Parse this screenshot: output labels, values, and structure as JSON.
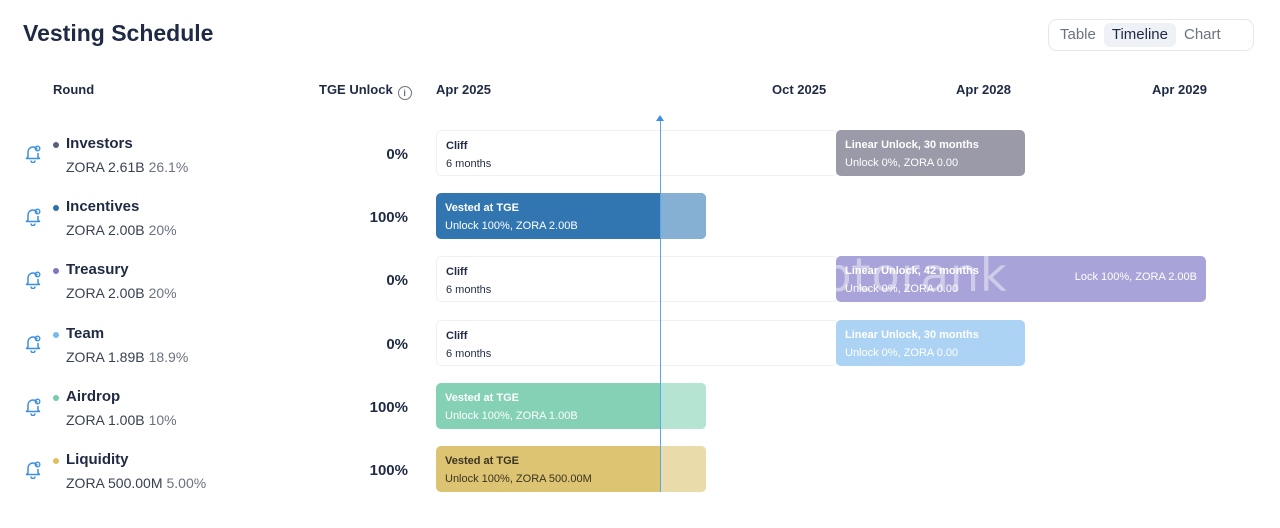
{
  "title": "Vesting Schedule",
  "view_tabs": [
    {
      "label": "Table",
      "active": false
    },
    {
      "label": "Timeline",
      "active": true
    },
    {
      "label": "Chart",
      "active": false
    }
  ],
  "headers": {
    "round": "Round",
    "tge_unlock": "TGE Unlock",
    "timeline": [
      "Apr 2025",
      "Oct 2025",
      "Apr 2028",
      "Apr 2029"
    ]
  },
  "icons": {
    "alert": "bell-icon",
    "info": "info-icon",
    "now_marker": "current-date-marker"
  },
  "watermark": "cryptorank",
  "rounds": [
    {
      "name": "Investors",
      "amount": "ZORA 2.61B",
      "share": "26.1%",
      "tge": "0%",
      "color": "#5a5f78",
      "cliff": {
        "l1": "Cliff",
        "l2": "6 months"
      },
      "vest": {
        "l1": "Linear Unlock, 30 months",
        "l2": "Unlock 0%, ZORA 0.00",
        "color": "#9a9aa8"
      }
    },
    {
      "name": "Incentives",
      "amount": "ZORA 2.00B",
      "share": "20%",
      "tge": "100%",
      "color": "#2f6fa8",
      "tge_bar": {
        "l1": "Vested at TGE",
        "l2": "Unlock 100%, ZORA 2.00B",
        "color": "#3276b1",
        "fade": "#86afd4"
      }
    },
    {
      "name": "Treasury",
      "amount": "ZORA 2.00B",
      "share": "20%",
      "tge": "0%",
      "color": "#7f77c4",
      "cliff": {
        "l1": "Cliff",
        "l2": "6 months"
      },
      "vest": {
        "l1": "Linear Unlock, 42 months",
        "l2": "Unlock 0%, ZORA 0.00",
        "r": "Lock 100%, ZORA 2.00B",
        "color": "#a8a3d8"
      }
    },
    {
      "name": "Team",
      "amount": "ZORA 1.89B",
      "share": "18.9%",
      "tge": "0%",
      "color": "#7ab8ec",
      "cliff": {
        "l1": "Cliff",
        "l2": "6 months"
      },
      "vest": {
        "l1": "Linear Unlock, 30 months",
        "l2": "Unlock 0%, ZORA 0.00",
        "color": "#acd3f3"
      }
    },
    {
      "name": "Airdrop",
      "amount": "ZORA 1.00B",
      "share": "10%",
      "tge": "100%",
      "color": "#73ccb0",
      "tge_bar": {
        "l1": "Vested at TGE",
        "l2": "Unlock 100%, ZORA 1.00B",
        "color": "#85d1b6",
        "fade": "#b6e4d3"
      }
    },
    {
      "name": "Liquidity",
      "amount": "ZORA 500.00M",
      "share": "5.00%",
      "tge": "100%",
      "color": "#e3bf5a",
      "tge_bar": {
        "l1": "Vested at TGE",
        "l2": "Unlock 100%, ZORA 500.00M",
        "color": "#dcc472",
        "fade": "#e9dbaa",
        "dark": true
      }
    }
  ]
}
